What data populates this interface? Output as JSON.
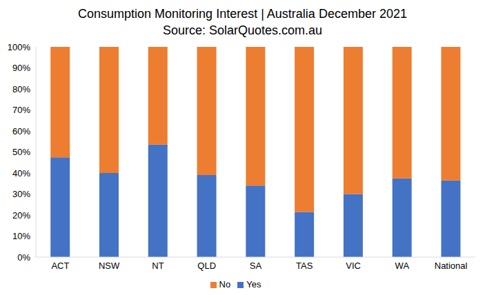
{
  "chart_data": {
    "type": "bar",
    "title": "Consumption Monitoring Interest | Australia December 2021",
    "subtitle": "Source: SolarQuotes.com.au",
    "categories": [
      "ACT",
      "NSW",
      "NT",
      "QLD",
      "SA",
      "TAS",
      "VIC",
      "WA",
      "National"
    ],
    "series": [
      {
        "name": "Yes",
        "color": "#4472c4",
        "values": [
          47.5,
          40,
          53.5,
          39,
          34,
          21.5,
          30,
          37.5,
          36.5
        ]
      },
      {
        "name": "No",
        "color": "#ed7d31",
        "values": [
          52.5,
          60,
          46.5,
          61,
          66,
          78.5,
          70,
          62.5,
          63.5
        ]
      }
    ],
    "stacked": true,
    "ylim": [
      0,
      100
    ],
    "yticks": [
      {
        "value": 0,
        "label": "0%"
      },
      {
        "value": 10,
        "label": "10%"
      },
      {
        "value": 20,
        "label": "20%"
      },
      {
        "value": 30,
        "label": "30%"
      },
      {
        "value": 40,
        "label": "40%"
      },
      {
        "value": 50,
        "label": "50%"
      },
      {
        "value": 60,
        "label": "60%"
      },
      {
        "value": 70,
        "label": "70%"
      },
      {
        "value": 80,
        "label": "80%"
      },
      {
        "value": 90,
        "label": "90%"
      },
      {
        "value": 100,
        "label": "100%"
      }
    ],
    "grid": false,
    "legend": "bottom"
  }
}
